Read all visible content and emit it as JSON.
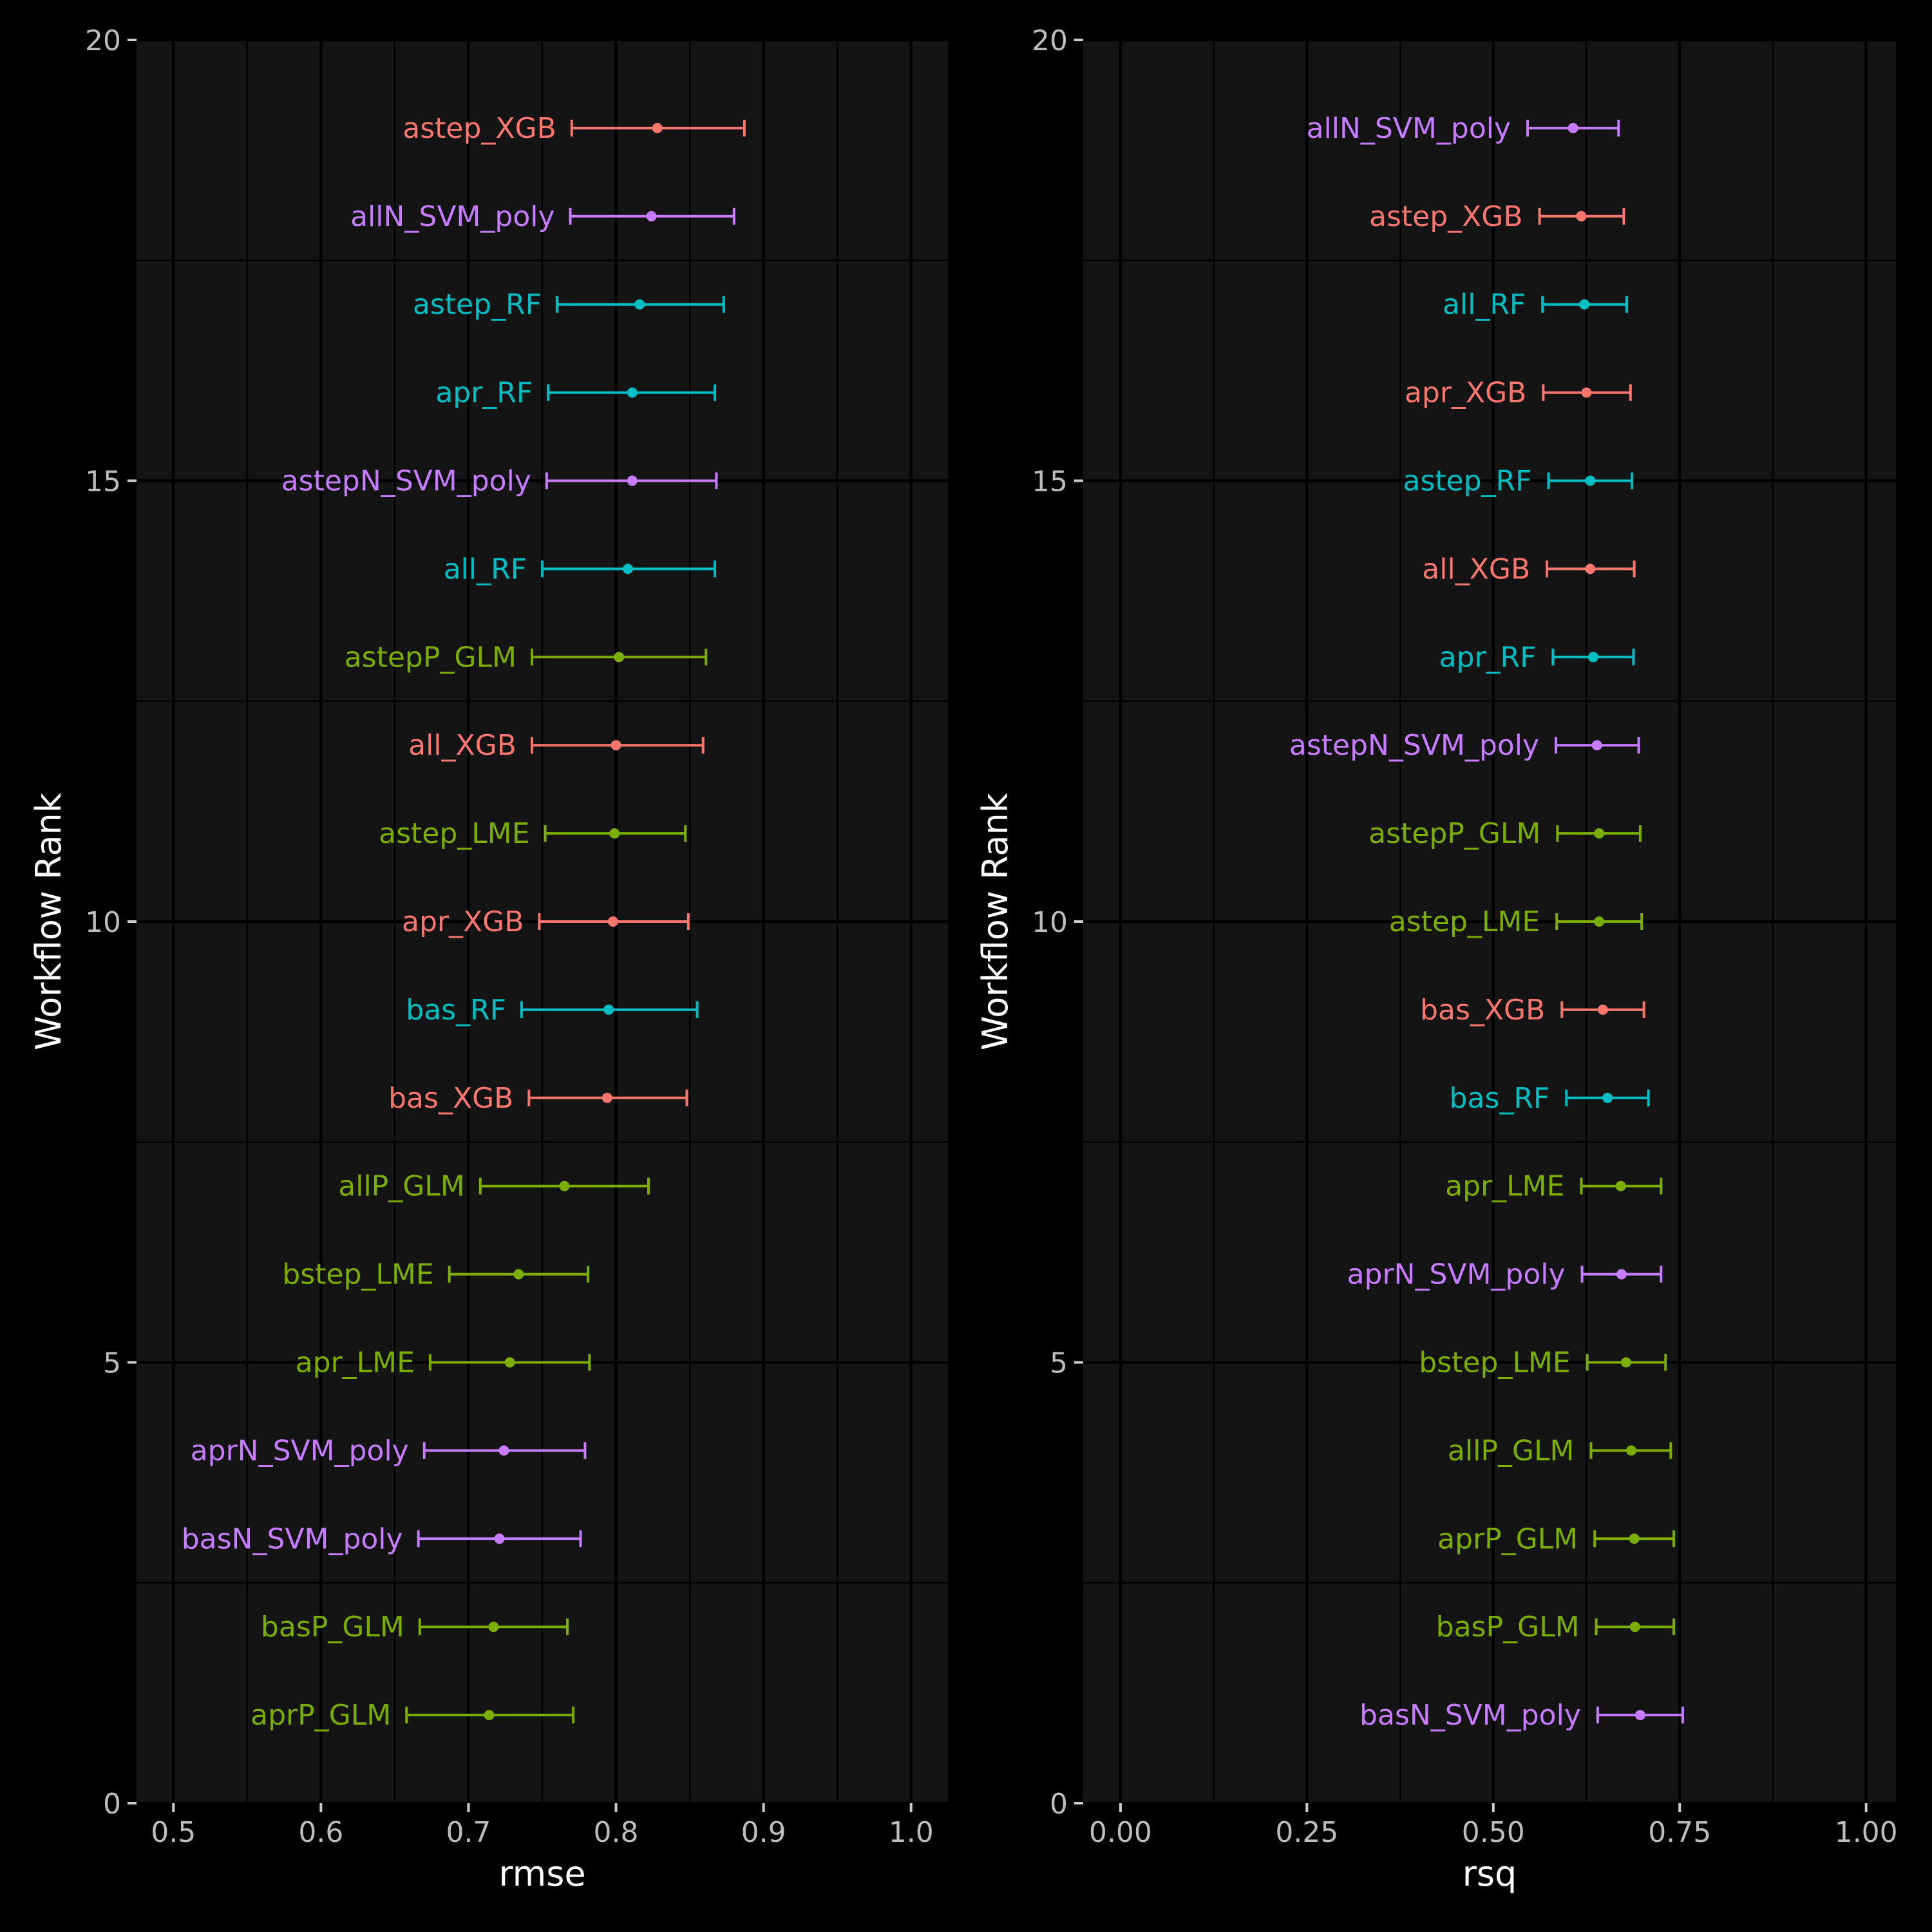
{
  "colors": {
    "XGB": "#F8766D",
    "GLM_LME": "#7CAE00",
    "RF": "#00BFC4",
    "SVM": "#C77CFF",
    "panel_bg": "#141414",
    "plot_bg": "#000000"
  },
  "chart_data": [
    {
      "type": "scatter",
      "xlabel": "rmse",
      "ylabel": "Workflow Rank",
      "xlim": [
        0.475,
        1.025
      ],
      "ylim": [
        0,
        20
      ],
      "x_ticks": [
        "0.5",
        "0.6",
        "0.7",
        "0.8",
        "0.9",
        "1.0"
      ],
      "y_ticks": [
        "0",
        "5",
        "10",
        "15",
        "20"
      ],
      "grid": true,
      "points": [
        {
          "label": "astep_XGB",
          "rank": 19,
          "x": 0.828,
          "low": 0.77,
          "high": 0.887,
          "group": "XGB"
        },
        {
          "label": "allN_SVM_poly",
          "rank": 18,
          "x": 0.824,
          "low": 0.769,
          "high": 0.88,
          "group": "SVM"
        },
        {
          "label": "astep_RF",
          "rank": 17,
          "x": 0.816,
          "low": 0.76,
          "high": 0.873,
          "group": "RF"
        },
        {
          "label": "apr_RF",
          "rank": 16,
          "x": 0.811,
          "low": 0.754,
          "high": 0.867,
          "group": "RF"
        },
        {
          "label": "astepN_SVM_poly",
          "rank": 15,
          "x": 0.811,
          "low": 0.753,
          "high": 0.868,
          "group": "SVM"
        },
        {
          "label": "all_RF",
          "rank": 14,
          "x": 0.808,
          "low": 0.75,
          "high": 0.867,
          "group": "RF"
        },
        {
          "label": "astepP_GLM",
          "rank": 13,
          "x": 0.802,
          "low": 0.743,
          "high": 0.861,
          "group": "GLM_LME"
        },
        {
          "label": "all_XGB",
          "rank": 12,
          "x": 0.8,
          "low": 0.743,
          "high": 0.859,
          "group": "XGB"
        },
        {
          "label": "astep_LME",
          "rank": 11,
          "x": 0.799,
          "low": 0.752,
          "high": 0.847,
          "group": "GLM_LME"
        },
        {
          "label": "apr_XGB",
          "rank": 10,
          "x": 0.798,
          "low": 0.748,
          "high": 0.849,
          "group": "XGB"
        },
        {
          "label": "bas_RF",
          "rank": 9,
          "x": 0.795,
          "low": 0.736,
          "high": 0.855,
          "group": "RF"
        },
        {
          "label": "bas_XGB",
          "rank": 8,
          "x": 0.794,
          "low": 0.741,
          "high": 0.848,
          "group": "XGB"
        },
        {
          "label": "allP_GLM",
          "rank": 7,
          "x": 0.765,
          "low": 0.708,
          "high": 0.822,
          "group": "GLM_LME"
        },
        {
          "label": "bstep_LME",
          "rank": 6,
          "x": 0.734,
          "low": 0.687,
          "high": 0.781,
          "group": "GLM_LME"
        },
        {
          "label": "apr_LME",
          "rank": 5,
          "x": 0.728,
          "low": 0.674,
          "high": 0.782,
          "group": "GLM_LME"
        },
        {
          "label": "aprN_SVM_poly",
          "rank": 4,
          "x": 0.724,
          "low": 0.67,
          "high": 0.779,
          "group": "SVM"
        },
        {
          "label": "basN_SVM_poly",
          "rank": 3,
          "x": 0.721,
          "low": 0.666,
          "high": 0.776,
          "group": "SVM"
        },
        {
          "label": "basP_GLM",
          "rank": 2,
          "x": 0.717,
          "low": 0.667,
          "high": 0.767,
          "group": "GLM_LME"
        },
        {
          "label": "aprP_GLM",
          "rank": 1,
          "x": 0.714,
          "low": 0.658,
          "high": 0.771,
          "group": "GLM_LME"
        }
      ]
    },
    {
      "type": "scatter",
      "xlabel": "rsq",
      "ylabel": "Workflow Rank",
      "xlim": [
        -0.05,
        1.04
      ],
      "ylim": [
        0,
        20
      ],
      "x_ticks": [
        "0.00",
        "0.25",
        "0.50",
        "0.75",
        "1.00"
      ],
      "y_ticks": [
        "0",
        "5",
        "10",
        "15",
        "20"
      ],
      "grid": true,
      "points": [
        {
          "label": "allN_SVM_poly",
          "rank": 19,
          "x": 0.607,
          "low": 0.546,
          "high": 0.668,
          "group": "SVM"
        },
        {
          "label": "astep_XGB",
          "rank": 18,
          "x": 0.618,
          "low": 0.562,
          "high": 0.675,
          "group": "XGB"
        },
        {
          "label": "all_RF",
          "rank": 17,
          "x": 0.622,
          "low": 0.566,
          "high": 0.679,
          "group": "RF"
        },
        {
          "label": "apr_XGB",
          "rank": 16,
          "x": 0.625,
          "low": 0.567,
          "high": 0.684,
          "group": "XGB"
        },
        {
          "label": "astep_RF",
          "rank": 15,
          "x": 0.63,
          "low": 0.574,
          "high": 0.686,
          "group": "RF"
        },
        {
          "label": "all_XGB",
          "rank": 14,
          "x": 0.63,
          "low": 0.572,
          "high": 0.689,
          "group": "XGB"
        },
        {
          "label": "apr_RF",
          "rank": 13,
          "x": 0.634,
          "low": 0.58,
          "high": 0.688,
          "group": "RF"
        },
        {
          "label": "astepN_SVM_poly",
          "rank": 12,
          "x": 0.639,
          "low": 0.584,
          "high": 0.695,
          "group": "SVM"
        },
        {
          "label": "astepP_GLM",
          "rank": 11,
          "x": 0.642,
          "low": 0.586,
          "high": 0.697,
          "group": "GLM_LME"
        },
        {
          "label": "astep_LME",
          "rank": 10,
          "x": 0.642,
          "low": 0.585,
          "high": 0.699,
          "group": "GLM_LME"
        },
        {
          "label": "bas_XGB",
          "rank": 9,
          "x": 0.647,
          "low": 0.592,
          "high": 0.702,
          "group": "XGB"
        },
        {
          "label": "bas_RF",
          "rank": 8,
          "x": 0.653,
          "low": 0.598,
          "high": 0.708,
          "group": "RF"
        },
        {
          "label": "apr_LME",
          "rank": 7,
          "x": 0.671,
          "low": 0.618,
          "high": 0.725,
          "group": "GLM_LME"
        },
        {
          "label": "aprN_SVM_poly",
          "rank": 6,
          "x": 0.672,
          "low": 0.619,
          "high": 0.725,
          "group": "SVM"
        },
        {
          "label": "bstep_LME",
          "rank": 5,
          "x": 0.678,
          "low": 0.626,
          "high": 0.731,
          "group": "GLM_LME"
        },
        {
          "label": "allP_GLM",
          "rank": 4,
          "x": 0.685,
          "low": 0.631,
          "high": 0.738,
          "group": "GLM_LME"
        },
        {
          "label": "aprP_GLM",
          "rank": 3,
          "x": 0.689,
          "low": 0.636,
          "high": 0.742,
          "group": "GLM_LME"
        },
        {
          "label": "basP_GLM",
          "rank": 2,
          "x": 0.69,
          "low": 0.638,
          "high": 0.742,
          "group": "GLM_LME"
        },
        {
          "label": "basN_SVM_poly",
          "rank": 1,
          "x": 0.697,
          "low": 0.64,
          "high": 0.754,
          "group": "SVM"
        }
      ]
    }
  ]
}
